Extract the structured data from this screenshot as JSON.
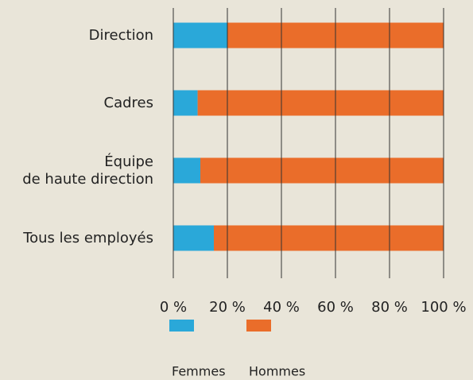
{
  "chart_data": {
    "type": "stacked_bar_horizontal",
    "categories": [
      "Direction",
      "Cadres",
      "Équipe\nde haute direction",
      "Tous les employés"
    ],
    "series": [
      {
        "name": "Femmes",
        "color": "#2aa8d9",
        "values": [
          20,
          9,
          10,
          15
        ]
      },
      {
        "name": "Hommes",
        "color": "#ea6d2a",
        "values": [
          80,
          91,
          90,
          85
        ]
      }
    ],
    "xlim": [
      0,
      100
    ],
    "xticks": [
      {
        "value": 0,
        "label": "0 %"
      },
      {
        "value": 20,
        "label": "20 %"
      },
      {
        "value": 40,
        "label": "40 %"
      },
      {
        "value": 60,
        "label": "60 %"
      },
      {
        "value": 80,
        "label": "80 %"
      },
      {
        "value": 100,
        "label": "100 %"
      }
    ],
    "grid": true,
    "legend": "bottom"
  }
}
